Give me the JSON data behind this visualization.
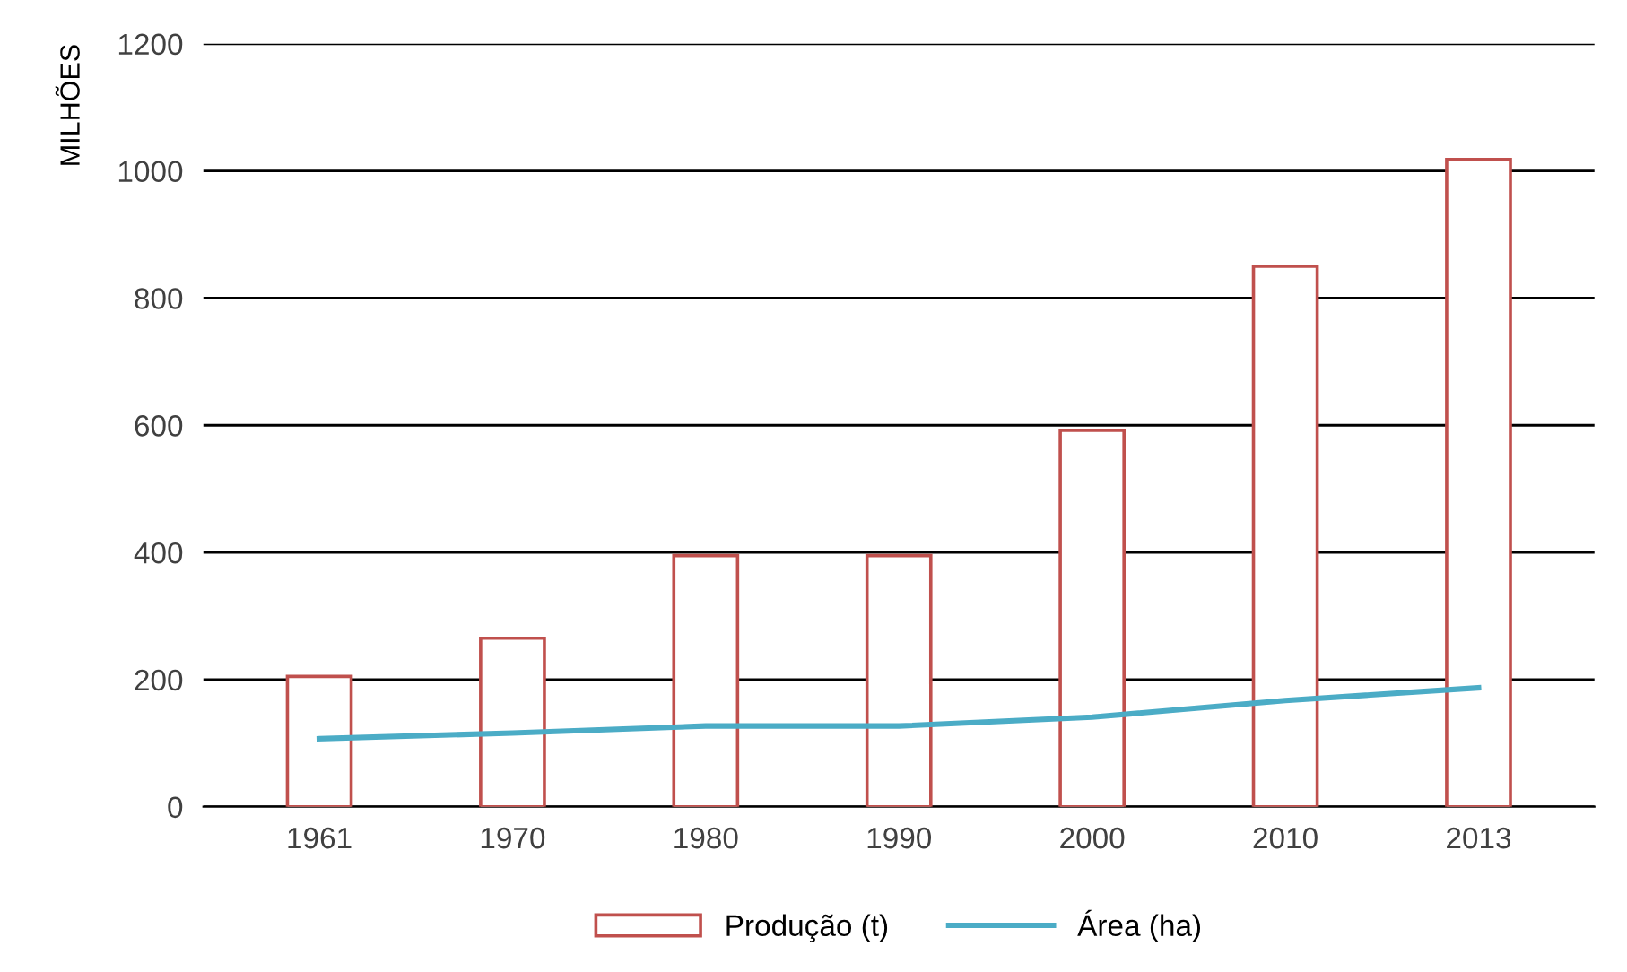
{
  "chart_data": {
    "type": "bar",
    "ylabel": "MILHÕES",
    "categories": [
      "1961",
      "1970",
      "1980",
      "1990",
      "2000",
      "2010",
      "2013"
    ],
    "series": [
      {
        "name": "Produção (t)",
        "color": "#c0504d",
        "values": [
          205,
          265,
          395,
          395,
          592,
          850,
          1018
        ]
      },
      {
        "name": "Área (ha)",
        "type": "line",
        "color": "#4bacc6",
        "values": [
          107,
          116,
          127,
          127,
          141,
          167,
          187
        ]
      }
    ],
    "ylim": [
      0,
      1200
    ],
    "yticks": [
      0,
      200,
      400,
      600,
      800,
      1000,
      1200
    ],
    "grid": "y",
    "legend": "bottom"
  }
}
